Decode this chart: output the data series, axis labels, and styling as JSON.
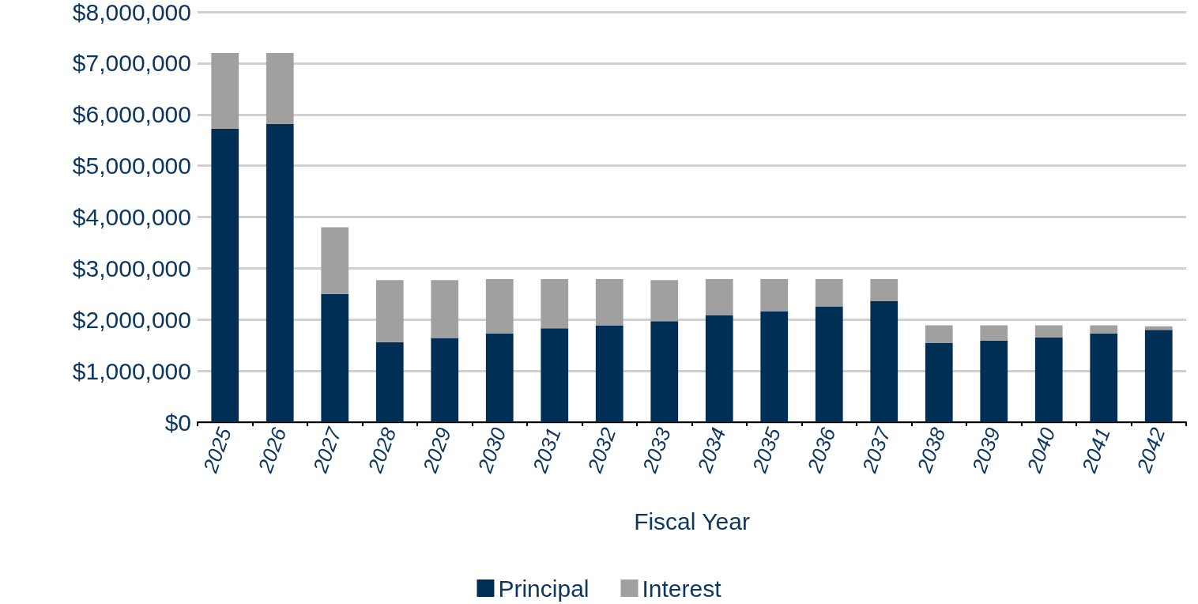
{
  "chart_data": {
    "type": "bar",
    "stacked": true,
    "xlabel": "Fiscal Year",
    "categories": [
      "2025",
      "2026",
      "2027",
      "2028",
      "2029",
      "2030",
      "2031",
      "2032",
      "2033",
      "2034",
      "2035",
      "2036",
      "2037",
      "2038",
      "2039",
      "2040",
      "2041",
      "2042"
    ],
    "series": [
      {
        "name": "Principal",
        "color": "#002f56",
        "values": [
          5720000,
          5810000,
          2500000,
          1560000,
          1640000,
          1730000,
          1830000,
          1890000,
          1970000,
          2090000,
          2160000,
          2250000,
          2360000,
          1540000,
          1590000,
          1650000,
          1730000,
          1800000
        ]
      },
      {
        "name": "Interest",
        "color": "#a0a0a0",
        "values": [
          1480000,
          1390000,
          1300000,
          1210000,
          1130000,
          1060000,
          960000,
          900000,
          800000,
          700000,
          630000,
          540000,
          430000,
          350000,
          300000,
          240000,
          160000,
          70000
        ]
      }
    ],
    "ylim": [
      0,
      8000000
    ],
    "yticks": [
      {
        "value": 0,
        "label": "$0"
      },
      {
        "value": 1000000,
        "label": "$1,000,000"
      },
      {
        "value": 2000000,
        "label": "$2,000,000"
      },
      {
        "value": 3000000,
        "label": "$3,000,000"
      },
      {
        "value": 4000000,
        "label": "$4,000,000"
      },
      {
        "value": 5000000,
        "label": "$5,000,000"
      },
      {
        "value": 6000000,
        "label": "$6,000,000"
      },
      {
        "value": 7000000,
        "label": "$7,000,000"
      },
      {
        "value": 8000000,
        "label": "$8,000,000"
      }
    ],
    "grid": "y",
    "legend": "bottom"
  }
}
